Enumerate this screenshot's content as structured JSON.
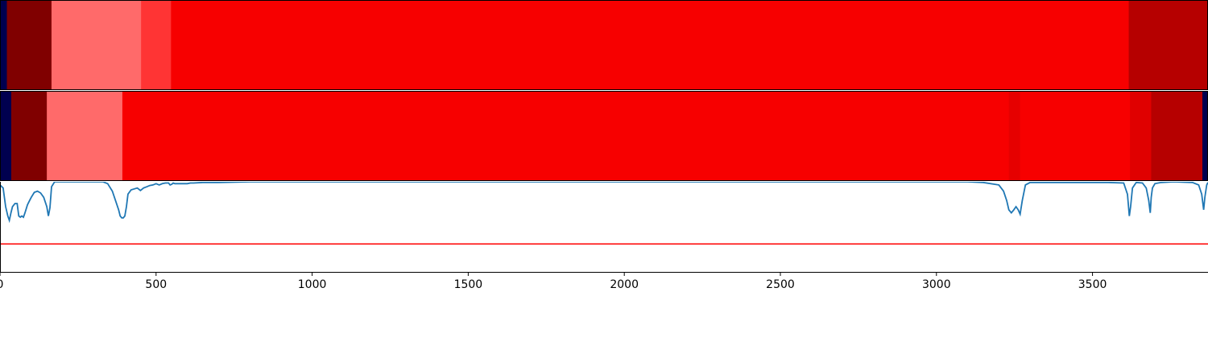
{
  "chart_data": [
    {
      "type": "heatmap",
      "title": "",
      "xlim": [
        0,
        3870
      ],
      "colormap": "seismic (blue to white to red)",
      "segments": [
        {
          "x0": 0,
          "x1": 22,
          "color": "#00004f"
        },
        {
          "x0": 22,
          "x1": 165,
          "color": "#800000"
        },
        {
          "x0": 165,
          "x1": 452,
          "color": "#ff6a6a"
        },
        {
          "x0": 452,
          "x1": 548,
          "color": "#ff3434"
        },
        {
          "x0": 548,
          "x1": 3616,
          "color": "#f70000"
        },
        {
          "x0": 3616,
          "x1": 3870,
          "color": "#b60000"
        }
      ]
    },
    {
      "type": "heatmap",
      "title": "",
      "xlim": [
        0,
        3870
      ],
      "colormap": "seismic (blue to white to red)",
      "segments": [
        {
          "x0": 0,
          "x1": 36,
          "color": "#00004f"
        },
        {
          "x0": 36,
          "x1": 150,
          "color": "#800000"
        },
        {
          "x0": 150,
          "x1": 392,
          "color": "#ff6a6a"
        },
        {
          "x0": 392,
          "x1": 3232,
          "color": "#f70000"
        },
        {
          "x0": 3232,
          "x1": 3268,
          "color": "#e60000"
        },
        {
          "x0": 3268,
          "x1": 3620,
          "color": "#f70000"
        },
        {
          "x0": 3620,
          "x1": 3688,
          "color": "#e00000"
        },
        {
          "x0": 3688,
          "x1": 3852,
          "color": "#b60000"
        },
        {
          "x0": 3852,
          "x1": 3870,
          "color": "#00004f"
        }
      ]
    },
    {
      "type": "line",
      "title": "",
      "xlabel": "",
      "ylabel": "",
      "xlim": [
        0,
        3870
      ],
      "ylim": [
        -0.45,
        1.0
      ],
      "grid": false,
      "xticks": [
        0,
        500,
        1000,
        1500,
        2000,
        2500,
        3000,
        3500
      ],
      "xtick_labels": [
        "0",
        "500",
        "1000",
        "1500",
        "2000",
        "2500",
        "3000",
        "3500"
      ],
      "series": [
        {
          "color": "#1f77b4",
          "x": [
            0,
            10,
            18,
            25,
            30,
            35,
            40,
            48,
            55,
            60,
            65,
            70,
            75,
            80,
            88,
            95,
            100,
            110,
            120,
            130,
            140,
            150,
            155,
            160,
            165,
            175,
            250,
            330,
            345,
            360,
            370,
            380,
            385,
            390,
            395,
            400,
            405,
            410,
            420,
            440,
            450,
            460,
            470,
            480,
            490,
            500,
            510,
            520,
            530,
            540,
            545,
            550,
            555,
            560,
            580,
            600,
            610,
            620,
            650,
            700,
            800,
            1000,
            1500,
            2000,
            2500,
            3000,
            3100,
            3150,
            3200,
            3215,
            3225,
            3232,
            3240,
            3248,
            3255,
            3262,
            3268,
            3275,
            3285,
            3300,
            3400,
            3550,
            3600,
            3612,
            3618,
            3622,
            3628,
            3640,
            3660,
            3672,
            3680,
            3685,
            3688,
            3692,
            3700,
            3720,
            3760,
            3820,
            3840,
            3850,
            3856,
            3860,
            3866,
            3870
          ],
          "y": [
            0.95,
            0.9,
            0.6,
            0.45,
            0.38,
            0.5,
            0.6,
            0.65,
            0.65,
            0.45,
            0.43,
            0.45,
            0.43,
            0.5,
            0.63,
            0.7,
            0.75,
            0.83,
            0.85,
            0.82,
            0.75,
            0.6,
            0.45,
            0.58,
            0.92,
            1.0,
            1.0,
            1.0,
            0.97,
            0.85,
            0.7,
            0.55,
            0.45,
            0.42,
            0.42,
            0.45,
            0.6,
            0.8,
            0.87,
            0.9,
            0.86,
            0.9,
            0.92,
            0.94,
            0.95,
            0.97,
            0.95,
            0.97,
            0.98,
            0.98,
            0.95,
            0.96,
            0.98,
            0.97,
            0.97,
            0.97,
            0.98,
            0.98,
            0.99,
            0.99,
            1.0,
            1.0,
            1.0,
            1.0,
            1.0,
            1.0,
            1.0,
            0.99,
            0.95,
            0.85,
            0.7,
            0.55,
            0.5,
            0.55,
            0.6,
            0.55,
            0.48,
            0.7,
            0.95,
            0.99,
            0.99,
            0.99,
            0.98,
            0.8,
            0.45,
            0.6,
            0.9,
            0.99,
            0.98,
            0.9,
            0.7,
            0.5,
            0.75,
            0.9,
            0.97,
            0.99,
            1.0,
            0.99,
            0.95,
            0.8,
            0.55,
            0.75,
            0.95,
            0.99
          ]
        },
        {
          "color": "#ff0000",
          "x": [
            0,
            3870
          ],
          "y": [
            0.0,
            0.0
          ]
        }
      ]
    }
  ]
}
